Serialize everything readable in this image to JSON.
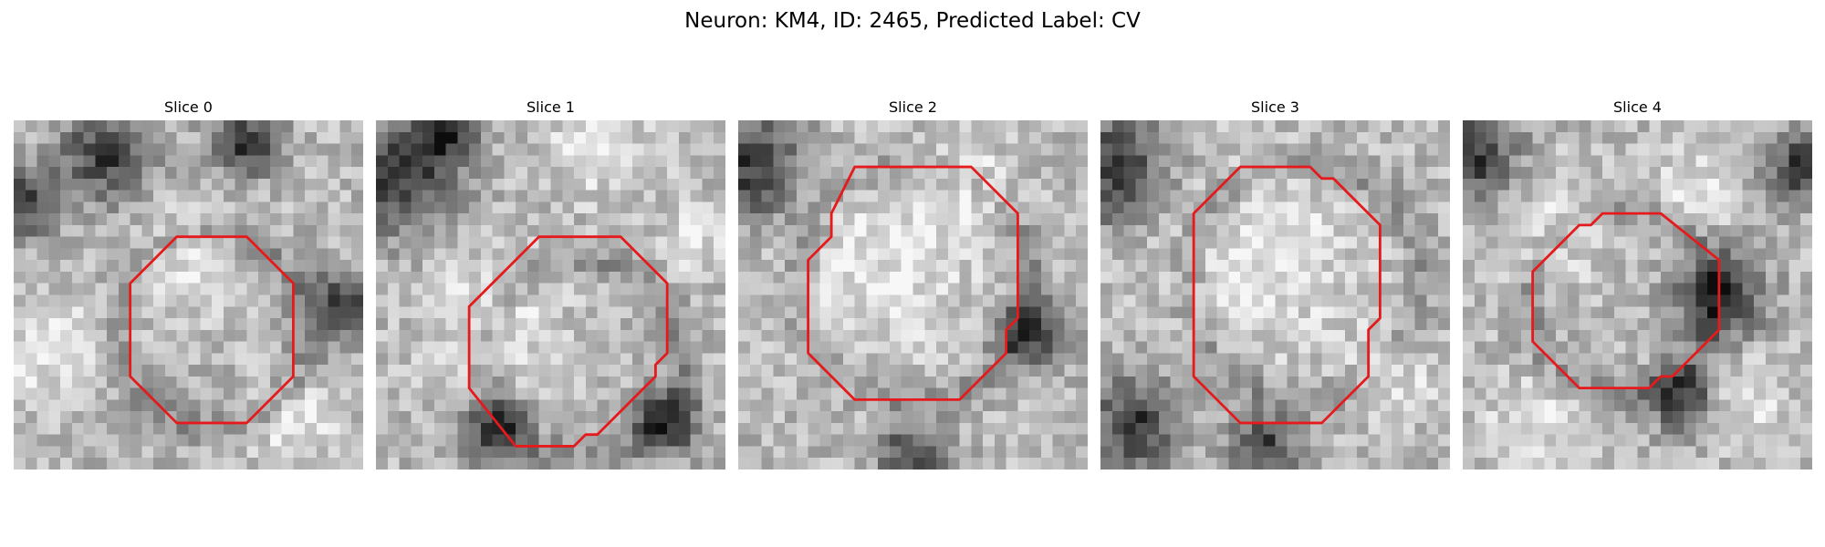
{
  "figure": {
    "title": "Neuron: KM4, ID: 2465, Predicted Label: CV"
  },
  "colors": {
    "contour": "#e41a1c",
    "background": "#ffffff"
  },
  "image_grid": {
    "pixels_per_side": 30,
    "colormap": "gray"
  },
  "panels": [
    {
      "title": "Slice 0",
      "image": {
        "dark_regions": [
          [
            8,
            3,
            4
          ],
          [
            1,
            7,
            3
          ],
          [
            28,
            16,
            3
          ],
          [
            20,
            2,
            3
          ]
        ],
        "light_regions": [
          [
            3,
            20,
            5
          ],
          [
            24,
            26,
            4
          ],
          [
            15,
            12,
            5
          ]
        ]
      },
      "contour": [
        [
          14,
          10
        ],
        [
          20,
          10
        ],
        [
          24,
          14
        ],
        [
          24,
          22
        ],
        [
          20,
          26
        ],
        [
          14,
          26
        ],
        [
          10,
          22
        ],
        [
          10,
          14
        ]
      ]
    },
    {
      "title": "Slice 1",
      "image": {
        "dark_regions": [
          [
            2,
            5,
            5
          ],
          [
            6,
            1,
            3
          ],
          [
            10,
            27,
            3
          ],
          [
            25,
            26,
            3
          ]
        ],
        "light_regions": [
          [
            19,
            2,
            5
          ],
          [
            10,
            17,
            6
          ],
          [
            27,
            10,
            3
          ]
        ]
      },
      "contour": [
        [
          14,
          10
        ],
        [
          21,
          10
        ],
        [
          25,
          14
        ],
        [
          25,
          20
        ],
        [
          24,
          21
        ],
        [
          24,
          22
        ],
        [
          19,
          27
        ],
        [
          18,
          27
        ],
        [
          17,
          28
        ],
        [
          12,
          28
        ],
        [
          8,
          23
        ],
        [
          8,
          16
        ]
      ]
    },
    {
      "title": "Slice 2",
      "image": {
        "dark_regions": [
          [
            1,
            4,
            5
          ],
          [
            15,
            29,
            3
          ],
          [
            25,
            18,
            3
          ]
        ],
        "light_regions": [
          [
            12,
            12,
            9
          ],
          [
            20,
            6,
            4
          ]
        ]
      },
      "contour": [
        [
          10,
          4
        ],
        [
          20,
          4
        ],
        [
          24,
          8
        ],
        [
          24,
          17
        ],
        [
          23,
          18
        ],
        [
          23,
          20
        ],
        [
          19,
          24
        ],
        [
          10,
          24
        ],
        [
          6,
          20
        ],
        [
          6,
          12
        ],
        [
          8,
          10
        ],
        [
          8,
          8
        ]
      ]
    },
    {
      "title": "Slice 3",
      "image": {
        "dark_regions": [
          [
            1,
            4,
            5
          ],
          [
            3,
            26,
            4
          ],
          [
            14,
            28,
            3
          ]
        ],
        "light_regions": [
          [
            14,
            12,
            9
          ],
          [
            25,
            22,
            4
          ]
        ]
      },
      "contour": [
        [
          12,
          4
        ],
        [
          18,
          4
        ],
        [
          19,
          5
        ],
        [
          20,
          5
        ],
        [
          24,
          9
        ],
        [
          24,
          17
        ],
        [
          23,
          18
        ],
        [
          23,
          22
        ],
        [
          19,
          26
        ],
        [
          12,
          26
        ],
        [
          8,
          22
        ],
        [
          8,
          8
        ]
      ]
    },
    {
      "title": "Slice 4",
      "image": {
        "dark_regions": [
          [
            1,
            3,
            4
          ],
          [
            29,
            4,
            3
          ],
          [
            22,
            15,
            4
          ],
          [
            19,
            24,
            3
          ]
        ],
        "light_regions": [
          [
            8,
            9,
            5
          ],
          [
            20,
            6,
            4
          ],
          [
            6,
            26,
            4
          ],
          [
            24,
            24,
            4
          ]
        ]
      },
      "contour": [
        [
          12,
          8
        ],
        [
          17,
          8
        ],
        [
          22,
          12
        ],
        [
          22,
          18
        ],
        [
          18,
          22
        ],
        [
          17,
          22
        ],
        [
          16,
          23
        ],
        [
          10,
          23
        ],
        [
          6,
          19
        ],
        [
          6,
          13
        ],
        [
          10,
          9
        ],
        [
          11,
          9
        ]
      ]
    }
  ]
}
